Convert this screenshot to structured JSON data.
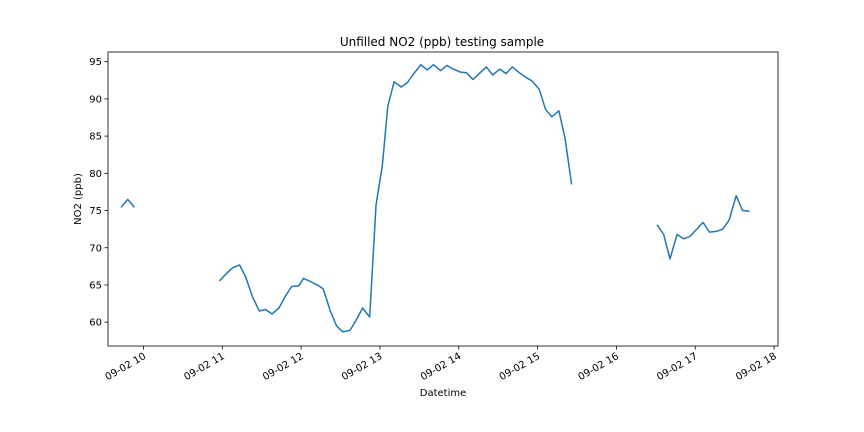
{
  "chart_data": {
    "type": "line",
    "title": "Unfilled NO2 (ppb) testing sample",
    "xlabel": "Datetime",
    "ylabel": "NO2 (ppb)",
    "xlim": [
      9.55,
      18.05
    ],
    "ylim": [
      56.8,
      96.3
    ],
    "x_ticks": [
      10,
      11,
      12,
      13,
      14,
      15,
      16,
      17,
      18
    ],
    "x_tick_labels": [
      "09-02 10",
      "09-02 11",
      "09-02 12",
      "09-02 13",
      "09-02 14",
      "09-02 15",
      "09-02 16",
      "09-02 17",
      "09-02 18"
    ],
    "y_ticks": [
      60,
      65,
      70,
      75,
      80,
      85,
      90,
      95
    ],
    "y_tick_labels": [
      "60",
      "65",
      "70",
      "75",
      "80",
      "85",
      "90",
      "95"
    ],
    "grid": false,
    "series": [
      {
        "color": "#1f77b4",
        "segments": [
          [
            [
              9.72,
              75.5
            ],
            [
              9.8,
              76.5
            ],
            [
              9.88,
              75.5
            ]
          ],
          [
            [
              10.97,
              65.6
            ],
            [
              11.05,
              66.5
            ],
            [
              11.13,
              67.3
            ],
            [
              11.22,
              67.7
            ],
            [
              11.3,
              66.0
            ],
            [
              11.38,
              63.5
            ],
            [
              11.47,
              61.5
            ],
            [
              11.55,
              61.7
            ],
            [
              11.63,
              61.1
            ],
            [
              11.72,
              61.9
            ],
            [
              11.8,
              63.5
            ],
            [
              11.88,
              64.8
            ],
            [
              11.97,
              64.9
            ],
            [
              12.03,
              65.9
            ],
            [
              12.13,
              65.4
            ],
            [
              12.22,
              64.9
            ],
            [
              12.28,
              64.5
            ],
            [
              12.37,
              61.5
            ],
            [
              12.45,
              59.5
            ],
            [
              12.53,
              58.7
            ],
            [
              12.62,
              58.9
            ],
            [
              12.7,
              60.3
            ],
            [
              12.78,
              61.9
            ],
            [
              12.87,
              60.7
            ],
            [
              12.95,
              75.7
            ],
            [
              13.03,
              81.0
            ],
            [
              13.1,
              89.0
            ],
            [
              13.18,
              92.3
            ],
            [
              13.27,
              91.6
            ],
            [
              13.35,
              92.2
            ],
            [
              13.43,
              93.4
            ],
            [
              13.52,
              94.6
            ],
            [
              13.6,
              93.9
            ],
            [
              13.68,
              94.6
            ],
            [
              13.77,
              93.8
            ],
            [
              13.85,
              94.5
            ],
            [
              13.93,
              94.0
            ],
            [
              14.02,
              93.6
            ],
            [
              14.1,
              93.5
            ],
            [
              14.18,
              92.6
            ],
            [
              14.27,
              93.5
            ],
            [
              14.35,
              94.3
            ],
            [
              14.43,
              93.2
            ],
            [
              14.52,
              94.0
            ],
            [
              14.6,
              93.4
            ],
            [
              14.68,
              94.3
            ],
            [
              14.77,
              93.5
            ],
            [
              14.85,
              92.9
            ],
            [
              14.93,
              92.4
            ],
            [
              15.02,
              91.3
            ],
            [
              15.1,
              88.6
            ],
            [
              15.18,
              87.6
            ],
            [
              15.27,
              88.4
            ],
            [
              15.35,
              84.6
            ],
            [
              15.43,
              78.6
            ]
          ],
          [
            [
              16.52,
              73.0
            ],
            [
              16.6,
              71.8
            ],
            [
              16.68,
              68.5
            ],
            [
              16.77,
              71.8
            ],
            [
              16.85,
              71.2
            ],
            [
              16.93,
              71.5
            ],
            [
              17.02,
              72.5
            ],
            [
              17.1,
              73.4
            ],
            [
              17.18,
              72.1
            ],
            [
              17.27,
              72.2
            ],
            [
              17.35,
              72.5
            ],
            [
              17.43,
              73.7
            ],
            [
              17.52,
              77.0
            ],
            [
              17.6,
              75.0
            ],
            [
              17.68,
              74.9
            ]
          ]
        ]
      }
    ]
  }
}
